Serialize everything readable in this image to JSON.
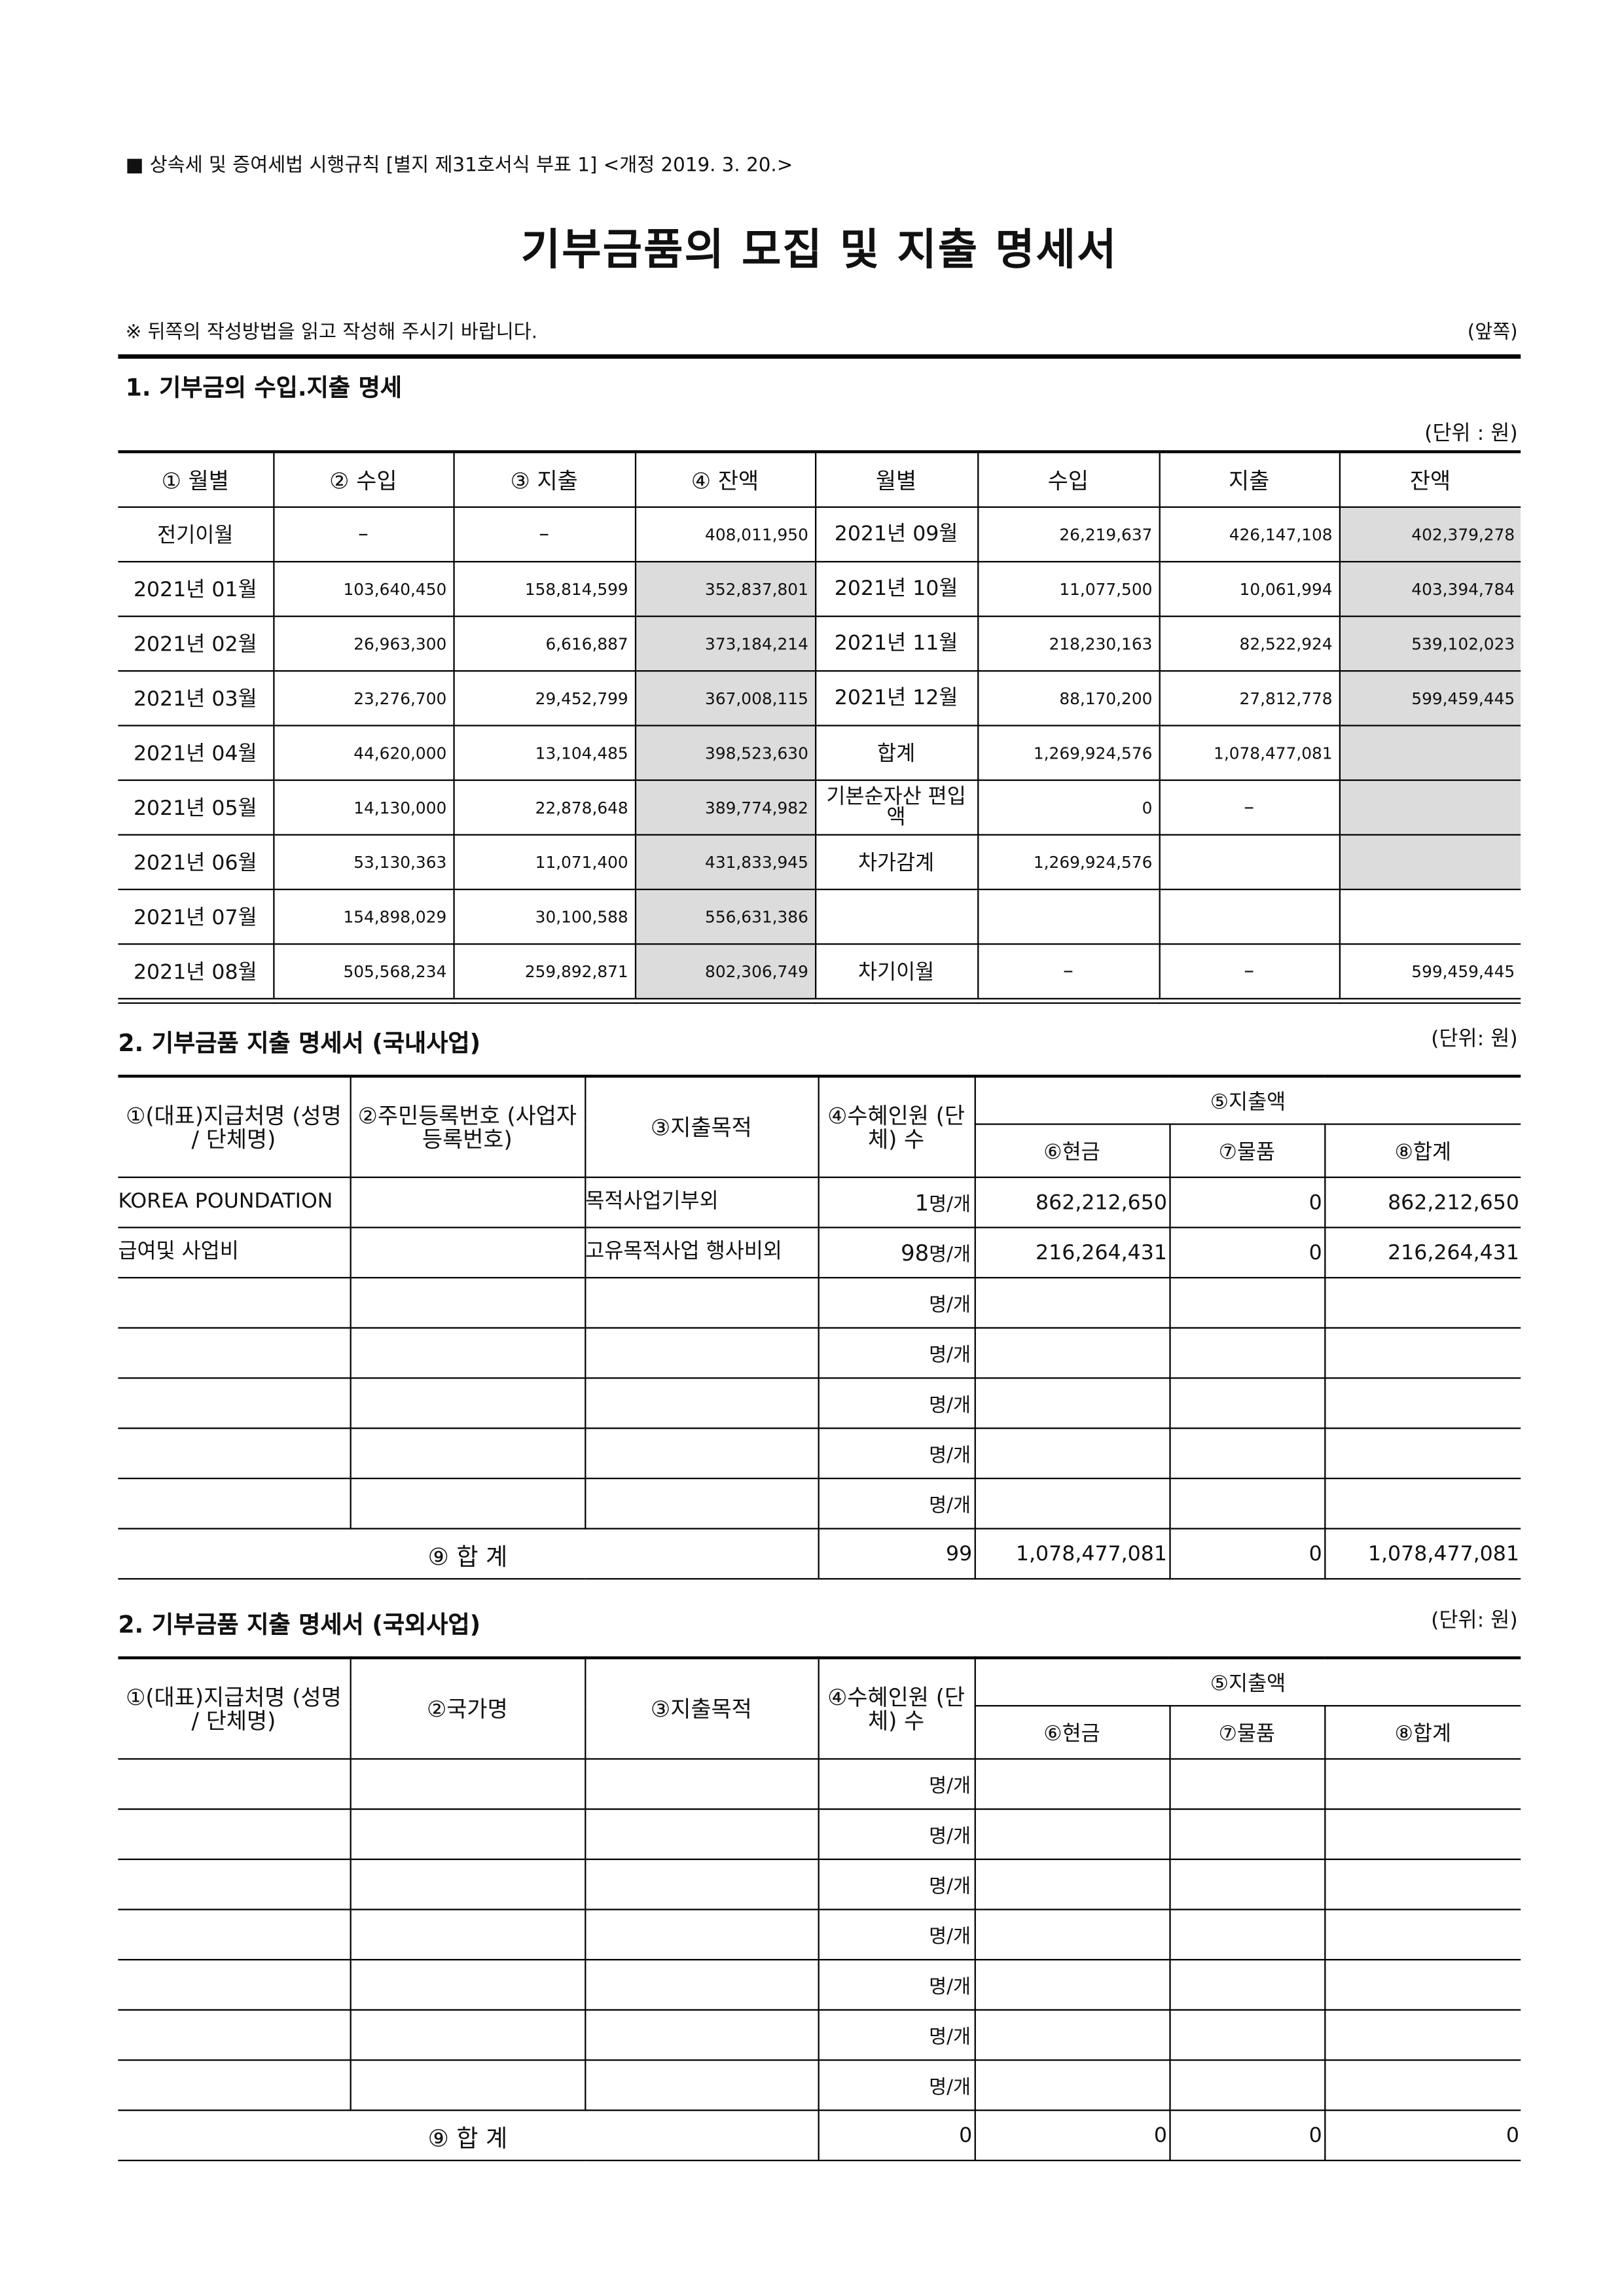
{
  "header_note": "■ 상속세 및 증여세법 시행규칙 [별지 제31호서식 부표 1] <개정 2019. 3. 20.>",
  "title": "기부금품의 모집 및 지출 명세서",
  "instruction": "※ 뒤쪽의 작성방법을 읽고 작성해 주시기 바랍니다.",
  "page_side": "(앞쪽)",
  "section1": {
    "title": "1. 기부금의 수입.지출 명세",
    "unit": "(단위 : 원)",
    "headers": [
      "① 월별",
      "② 수입",
      "③ 지출",
      "④ 잔액",
      "월별",
      "수입",
      "지출",
      "잔액"
    ],
    "rows": [
      [
        "전기이월",
        "–",
        "–",
        "408,011,950",
        "2021년 09월",
        "26,219,637",
        "426,147,108",
        "402,379,278"
      ],
      [
        "2021년 01월",
        "103,640,450",
        "158,814,599",
        "352,837,801",
        "2021년 10월",
        "11,077,500",
        "10,061,994",
        "403,394,784"
      ],
      [
        "2021년 02월",
        "26,963,300",
        "6,616,887",
        "373,184,214",
        "2021년 11월",
        "218,230,163",
        "82,522,924",
        "539,102,023"
      ],
      [
        "2021년 03월",
        "23,276,700",
        "29,452,799",
        "367,008,115",
        "2021년 12월",
        "88,170,200",
        "27,812,778",
        "599,459,445"
      ],
      [
        "2021년 04월",
        "44,620,000",
        "13,104,485",
        "398,523,630",
        "합계",
        "1,269,924,576",
        "1,078,477,081",
        ""
      ],
      [
        "2021년 05월",
        "14,130,000",
        "22,878,648",
        "389,774,982",
        "기본순자산 편입액",
        "0",
        "–",
        ""
      ],
      [
        "2021년 06월",
        "53,130,363",
        "11,071,400",
        "431,833,945",
        "차가감계",
        "1,269,924,576",
        "",
        ""
      ],
      [
        "2021년 07월",
        "154,898,029",
        "30,100,588",
        "556,631,386",
        "",
        "",
        "",
        ""
      ],
      [
        "2021년 08월",
        "505,568,234",
        "259,892,871",
        "802,306,749",
        "차기이월",
        "–",
        "–",
        "599,459,445"
      ]
    ]
  },
  "section2": {
    "title": "2. 기부금품 지출 명세서 (국내사업)",
    "unit": "(단위: 원)",
    "headers": {
      "payee": "①(대표)지급처명 (성명 / 단체명)",
      "id": "②주민등록번호 (사업자등록번호)",
      "purpose": "③지출목적",
      "count": "④수혜인원 (단체) 수",
      "amount": "⑤지출액",
      "cash": "⑥현금",
      "goods": "⑦물품",
      "total": "⑧합계"
    },
    "count_unit": "명/개",
    "rows": [
      {
        "payee": "KOREA POUNDATION",
        "id": "",
        "purpose": "목적사업기부외",
        "count": "1",
        "cash": "862,212,650",
        "goods": "0",
        "total": "862,212,650"
      },
      {
        "payee": "급여및 사업비",
        "id": "",
        "purpose": "고유목적사업 행사비외",
        "count": "98",
        "cash": "216,264,431",
        "goods": "0",
        "total": "216,264,431"
      },
      {
        "payee": "",
        "id": "",
        "purpose": "",
        "count": "",
        "cash": "",
        "goods": "",
        "total": ""
      },
      {
        "payee": "",
        "id": "",
        "purpose": "",
        "count": "",
        "cash": "",
        "goods": "",
        "total": ""
      },
      {
        "payee": "",
        "id": "",
        "purpose": "",
        "count": "",
        "cash": "",
        "goods": "",
        "total": ""
      },
      {
        "payee": "",
        "id": "",
        "purpose": "",
        "count": "",
        "cash": "",
        "goods": "",
        "total": ""
      },
      {
        "payee": "",
        "id": "",
        "purpose": "",
        "count": "",
        "cash": "",
        "goods": "",
        "total": ""
      }
    ],
    "total": {
      "label": "⑨ 합 계",
      "count": "99",
      "cash": "1,078,477,081",
      "goods": "0",
      "total": "1,078,477,081"
    }
  },
  "section3": {
    "title": "2. 기부금품 지출 명세서 (국외사업)",
    "unit": "(단위: 원)",
    "headers": {
      "payee": "①(대표)지급처명 (성명 / 단체명)",
      "id": "②국가명",
      "purpose": "③지출목적",
      "count": "④수혜인원 (단체) 수",
      "amount": "⑤지출액",
      "cash": "⑥현금",
      "goods": "⑦물품",
      "total": "⑧합계"
    },
    "count_unit": "명/개",
    "rows": [
      {
        "payee": "",
        "id": "",
        "purpose": "",
        "count": "",
        "cash": "",
        "goods": "",
        "total": ""
      },
      {
        "payee": "",
        "id": "",
        "purpose": "",
        "count": "",
        "cash": "",
        "goods": "",
        "total": ""
      },
      {
        "payee": "",
        "id": "",
        "purpose": "",
        "count": "",
        "cash": "",
        "goods": "",
        "total": ""
      },
      {
        "payee": "",
        "id": "",
        "purpose": "",
        "count": "",
        "cash": "",
        "goods": "",
        "total": ""
      },
      {
        "payee": "",
        "id": "",
        "purpose": "",
        "count": "",
        "cash": "",
        "goods": "",
        "total": ""
      },
      {
        "payee": "",
        "id": "",
        "purpose": "",
        "count": "",
        "cash": "",
        "goods": "",
        "total": ""
      },
      {
        "payee": "",
        "id": "",
        "purpose": "",
        "count": "",
        "cash": "",
        "goods": "",
        "total": ""
      }
    ],
    "total": {
      "label": "⑨ 합 계",
      "count": "0",
      "cash": "0",
      "goods": "0",
      "total": "0"
    }
  }
}
